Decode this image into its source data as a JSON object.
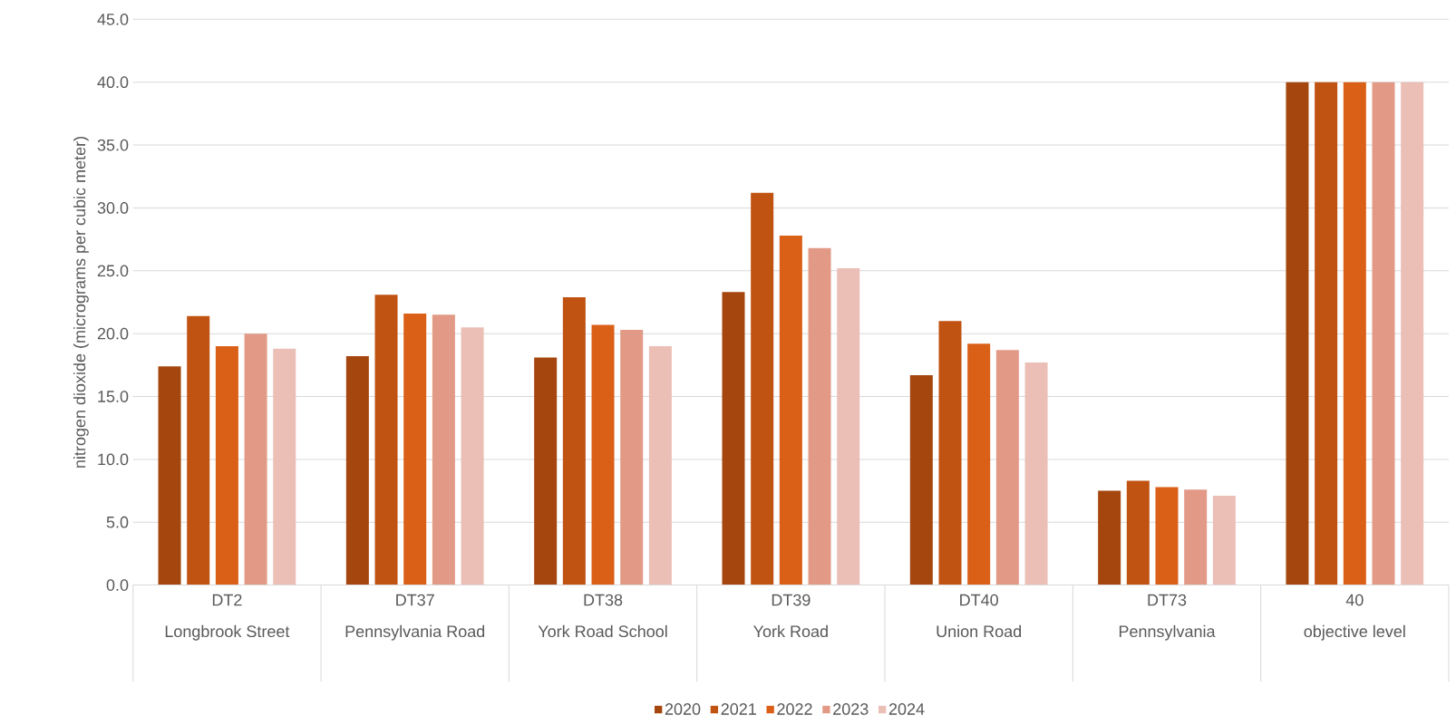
{
  "chart_data": {
    "type": "bar",
    "ylabel": "nitrogen dioxide (micrograms per cubic meter)",
    "categories": [
      "DT2\nLongbrook Street",
      "DT37\nPennsylvania Road",
      "DT38\nYork Road School",
      "DT39\nYork Road",
      "DT40\nUnion Road",
      "DT73\nPennsylvania",
      "40\nobjective level"
    ],
    "series": [
      {
        "name": "2020",
        "color": "#a5460e",
        "values": [
          17.4,
          18.2,
          18.1,
          23.3,
          16.7,
          7.5,
          40
        ]
      },
      {
        "name": "2021",
        "color": "#c05312",
        "values": [
          21.4,
          23.1,
          22.9,
          31.2,
          21.0,
          8.3,
          40
        ]
      },
      {
        "name": "2022",
        "color": "#da5f17",
        "values": [
          19.0,
          21.6,
          20.7,
          27.8,
          19.2,
          7.8,
          40
        ]
      },
      {
        "name": "2023",
        "color": "#e29a86",
        "values": [
          20.0,
          21.5,
          20.3,
          26.8,
          18.7,
          7.6,
          40
        ]
      },
      {
        "name": "2024",
        "color": "#ebbfb5",
        "values": [
          18.8,
          20.5,
          19.0,
          25.2,
          17.7,
          7.1,
          40
        ]
      }
    ],
    "ylim": [
      0,
      45
    ],
    "yticks": [
      {
        "value": 0,
        "label": "0.0"
      },
      {
        "value": 5,
        "label": "5.0"
      },
      {
        "value": 10,
        "label": "10.0"
      },
      {
        "value": 15,
        "label": "15.0"
      },
      {
        "value": 20,
        "label": "20.0"
      },
      {
        "value": 25,
        "label": "25.0"
      },
      {
        "value": 30,
        "label": "30.0"
      },
      {
        "value": 35,
        "label": "35.0"
      },
      {
        "value": 40,
        "label": "40.0"
      },
      {
        "value": 45,
        "label": "45.0"
      }
    ],
    "grid": "y",
    "legend": "bottom"
  }
}
